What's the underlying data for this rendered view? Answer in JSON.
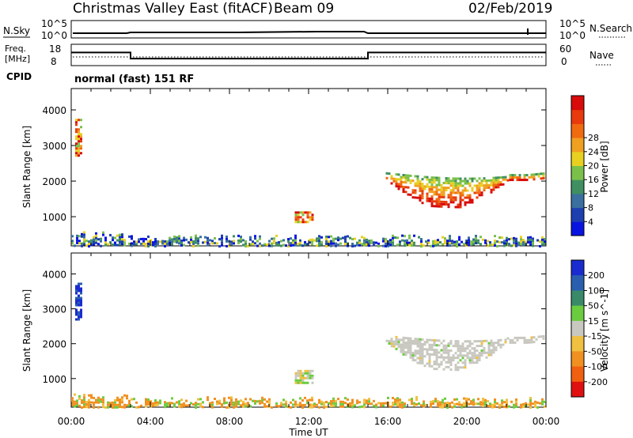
{
  "header": {
    "title": "Christmas Valley East (fitACF)",
    "beam": "Beam 09",
    "date": "02/Feb/2019"
  },
  "top_panels": {
    "nsky_label": "N.Sky",
    "nsky_ticks": [
      "10^5",
      "10^0"
    ],
    "nsearch_label": "N.Search",
    "nsearch_ticks": [
      "10^5",
      "10^0"
    ],
    "freq_label_line1": "Freq.",
    "freq_label_line2": "[MHz]",
    "freq_ticks": [
      "18",
      "8"
    ],
    "nave_label": "Nave",
    "nave_ticks": [
      "60",
      "0"
    ],
    "cpid_label": "CPID",
    "cpid_value": "normal (fast) 151 RF",
    "freq_steps": [
      {
        "from": 0,
        "to": 3,
        "mhz": 14.0
      },
      {
        "from": 3,
        "to": 15,
        "mhz": 10.3
      },
      {
        "from": 15,
        "to": 24,
        "mhz": 14.0
      }
    ]
  },
  "chart_data": [
    {
      "type": "heatmap",
      "name": "power",
      "ylabel": "Slant Range [km]",
      "ylim": [
        180,
        4600
      ],
      "yticks": [
        1000,
        2000,
        3000,
        4000
      ],
      "xlim": [
        0,
        24
      ],
      "colorbar": {
        "label": "Power [dB]",
        "ticks": [
          "4",
          "8",
          "12",
          "16",
          "20",
          "24",
          "28"
        ],
        "colors": [
          "#0a14e0",
          "#1e3fb0",
          "#3a6fa0",
          "#3f8f62",
          "#7bc04a",
          "#e8d020",
          "#f0a020",
          "#f06a10",
          "#e83a0c",
          "#d80a0a"
        ]
      },
      "echo_regions": [
        {
          "t0": 0.2,
          "t1": 0.55,
          "r0": 2700,
          "r1": 3750,
          "desc": "early scatter"
        },
        {
          "t0": 11.3,
          "t1": 12.2,
          "r0": 850,
          "r1": 1150,
          "desc": "midday patch"
        },
        {
          "t0": 15.9,
          "t1": 23.9,
          "r0": 1250,
          "r1": 2400,
          "desc": "evening band"
        },
        {
          "t0": 0.0,
          "t1": 24.0,
          "r0": 180,
          "r1": 600,
          "desc": "ground/near-range scatter"
        }
      ]
    },
    {
      "type": "heatmap",
      "name": "velocity",
      "ylabel": "Slant Range [km]",
      "ylim": [
        180,
        4600
      ],
      "yticks": [
        1000,
        2000,
        3000,
        4000
      ],
      "xlim": [
        0,
        24
      ],
      "xticks": [
        "00:00",
        "04:00",
        "08:00",
        "12:00",
        "16:00",
        "20:00",
        "00:00"
      ],
      "xlabel": "Time UT",
      "colorbar": {
        "label": "Velocity [m s^-1]",
        "ticks": [
          "200",
          "100",
          "50",
          "15",
          "-15",
          "-50",
          "-100",
          "-200"
        ],
        "colors": [
          "#1a2bd0",
          "#2a5fb0",
          "#3a8a6a",
          "#6ccc40",
          "#c8c8c0",
          "#f0c040",
          "#f09020",
          "#f06010",
          "#e01010"
        ]
      },
      "echo_regions": [
        {
          "t0": 0.2,
          "t1": 0.55,
          "r0": 2700,
          "r1": 3750,
          "desc": "blue early scatter"
        },
        {
          "t0": 11.3,
          "t1": 12.2,
          "r0": 900,
          "r1": 1250,
          "desc": "midday patch"
        },
        {
          "t0": 15.9,
          "t1": 23.9,
          "r0": 1250,
          "r1": 2400,
          "desc": "evening ground scatter (grey)"
        },
        {
          "t0": 0.0,
          "t1": 24.0,
          "r0": 180,
          "r1": 600,
          "desc": "near-range scatter"
        }
      ]
    }
  ],
  "velocity_cbar_unit_sup": "-1"
}
